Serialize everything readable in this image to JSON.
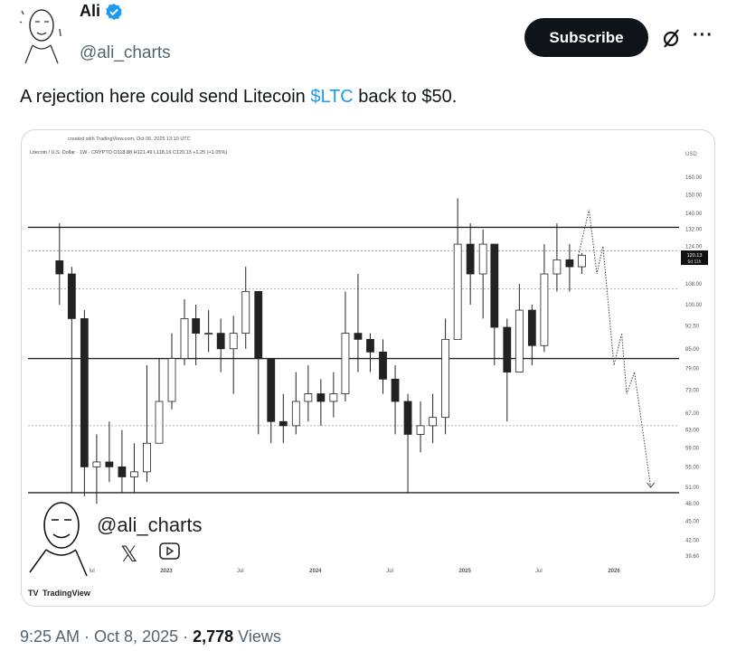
{
  "author": {
    "name": "Ali",
    "handle": "@ali_charts",
    "verified": true,
    "avatar_icon": "sketch-portrait-avatar"
  },
  "actions": {
    "subscribe_label": "Subscribe",
    "grok_icon": "slashed-circle-icon",
    "more_label": "···"
  },
  "tweet": {
    "text_before": "A rejection here could send Litecoin ",
    "cashtag": "$LTC",
    "text_after": " back to $50.",
    "link_color": "#1d9bf0"
  },
  "chart": {
    "created_line": "created with TradingView.com, Oct 06, 2025 13:10 UTC",
    "symbol_line": "Litecoin / U.S. Dollar · 1W · CRYPTO  O118.88  H121.49  L118.16  C120.13  +1.25 (+1.05%)",
    "currency": "USD",
    "price_badge": {
      "price": "120.13",
      "countdown": "6d 11h"
    },
    "watermark_handle": "@ali_charts",
    "watermark_icons": [
      "x-logo-icon",
      "youtube-play-icon"
    ],
    "brand": "TradingView",
    "x_ticks": [
      {
        "label": "Jul",
        "date": "2022-07-01"
      },
      {
        "label": "2023",
        "date": "2023-01-01"
      },
      {
        "label": "Jul",
        "date": "2023-07-01"
      },
      {
        "label": "2024",
        "date": "2024-01-01"
      },
      {
        "label": "Jul",
        "date": "2024-07-01"
      },
      {
        "label": "2025",
        "date": "2025-01-01"
      },
      {
        "label": "Jul",
        "date": "2025-07-01"
      },
      {
        "label": "2026",
        "date": "2026-01-01"
      }
    ],
    "y_ticks": [
      "160.00",
      "150.00",
      "140.00",
      "132.00",
      "124.00",
      "108.00",
      "100.00",
      "92.50",
      "85.00",
      "79.00",
      "73.00",
      "67.00",
      "63.00",
      "59.00",
      "55.00",
      "51.00",
      "48.00",
      "45.00",
      "42.00",
      "39.60"
    ],
    "y_scale": "log",
    "levels": [
      {
        "price": 133,
        "style": "solid"
      },
      {
        "price": 122,
        "style": "dotted"
      },
      {
        "price": 106,
        "style": "dotted"
      },
      {
        "price": 82,
        "style": "solid"
      },
      {
        "price": 64,
        "style": "dotted"
      },
      {
        "price": 50,
        "style": "solid"
      }
    ],
    "candles": [
      [
        "2022-04-01",
        135,
        100,
        112
      ],
      [
        "2022-05-01",
        115,
        50,
        95
      ],
      [
        "2022-06-01",
        98,
        48,
        55
      ],
      [
        "2022-07-01",
        62,
        48,
        56
      ],
      [
        "2022-08-01",
        65,
        52,
        55
      ],
      [
        "2022-09-01",
        63,
        50,
        53
      ],
      [
        "2022-10-01",
        60,
        50,
        54
      ],
      [
        "2022-11-01",
        80,
        52,
        60
      ],
      [
        "2022-12-01",
        82,
        60,
        70
      ],
      [
        "2023-01-01",
        90,
        68,
        82
      ],
      [
        "2023-02-01",
        102,
        80,
        95
      ],
      [
        "2023-03-01",
        100,
        80,
        90
      ],
      [
        "2023-04-01",
        98,
        84,
        90
      ],
      [
        "2023-05-01",
        95,
        78,
        85
      ],
      [
        "2023-06-01",
        96,
        72,
        90
      ],
      [
        "2023-07-01",
        115,
        85,
        105
      ],
      [
        "2023-08-01",
        100,
        62,
        82
      ],
      [
        "2023-09-01",
        70,
        60,
        65
      ],
      [
        "2023-10-01",
        72,
        60,
        64
      ],
      [
        "2023-11-01",
        78,
        62,
        70
      ],
      [
        "2023-12-01",
        80,
        65,
        72
      ],
      [
        "2024-01-01",
        76,
        64,
        70
      ],
      [
        "2024-02-01",
        78,
        66,
        72
      ],
      [
        "2024-03-01",
        105,
        70,
        90
      ],
      [
        "2024-04-01",
        112,
        78,
        88
      ],
      [
        "2024-05-01",
        90,
        78,
        84
      ],
      [
        "2024-06-01",
        88,
        72,
        76
      ],
      [
        "2024-07-01",
        80,
        62,
        70
      ],
      [
        "2024-08-01",
        72,
        50,
        62
      ],
      [
        "2024-09-01",
        70,
        58,
        64
      ],
      [
        "2024-10-01",
        72,
        60,
        66
      ],
      [
        "2024-11-01",
        95,
        62,
        88
      ],
      [
        "2024-12-01",
        148,
        90,
        125
      ],
      [
        "2025-01-01",
        135,
        100,
        112
      ],
      [
        "2025-02-01",
        132,
        95,
        125
      ],
      [
        "2025-03-01",
        125,
        80,
        92
      ],
      [
        "2025-04-01",
        95,
        65,
        78
      ],
      [
        "2025-05-01",
        108,
        78,
        98
      ],
      [
        "2025-06-01",
        100,
        80,
        86
      ],
      [
        "2025-07-01",
        125,
        84,
        112
      ],
      [
        "2025-08-01",
        135,
        105,
        118
      ],
      [
        "2025-09-01",
        125,
        105,
        115
      ],
      [
        "2025-10-01",
        121,
        112,
        120
      ]
    ],
    "projection": [
      [
        "2025-10-06",
        120
      ],
      [
        "2025-11-01",
        142
      ],
      [
        "2025-11-20",
        112
      ],
      [
        "2025-12-05",
        124
      ],
      [
        "2026-01-01",
        80
      ],
      [
        "2026-01-20",
        90
      ],
      [
        "2026-02-01",
        72
      ],
      [
        "2026-02-20",
        78
      ],
      [
        "2026-04-01",
        51
      ]
    ]
  },
  "meta": {
    "time": "9:25 AM",
    "date": "Oct 8, 2025",
    "views_count": "2,778",
    "views_label": "Views"
  }
}
